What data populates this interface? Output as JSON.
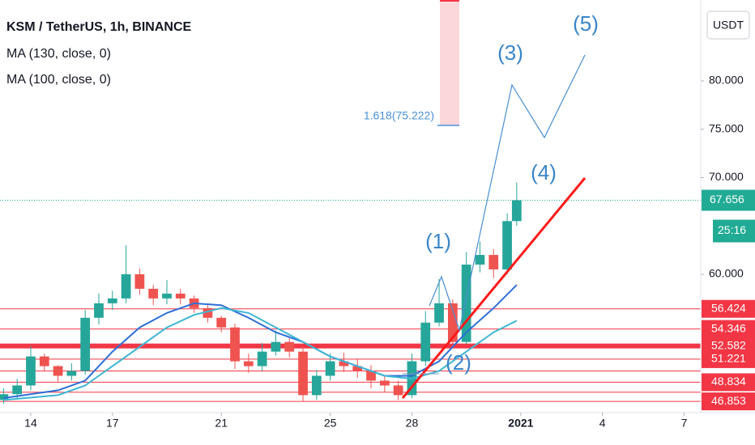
{
  "chart_data": {
    "type": "candlestick",
    "title": "KSM / TetherUS, 1h, BINANCE",
    "currency": "USDT",
    "x": [
      13,
      13.5,
      14,
      14.5,
      15,
      15.5,
      16,
      16.5,
      17,
      17.5,
      18,
      18.5,
      19,
      19.5,
      20,
      20.5,
      21,
      21.5,
      22,
      22.5,
      23,
      23.5,
      24,
      24.5,
      25,
      25.5,
      26,
      26.5,
      27,
      27.5,
      28,
      28.5,
      29,
      29.5,
      30,
      30.5,
      31,
      31.5,
      31.85
    ],
    "open": [
      47.0,
      47.6,
      48.5,
      51.5,
      50.5,
      49.5,
      50.0,
      55.5,
      57.0,
      57.5,
      60.0,
      58.5,
      57.5,
      58.0,
      57.5,
      56.5,
      55.5,
      54.5,
      51.0,
      50.5,
      52.0,
      53.0,
      52.0,
      47.5,
      49.5,
      51.0,
      50.5,
      50.0,
      49.0,
      48.5,
      47.5,
      51.0,
      55.0,
      57.0,
      53.0,
      61.0,
      62.0,
      60.5,
      65.5
    ],
    "high": [
      48.2,
      49.2,
      52.6,
      51.8,
      50.6,
      50.8,
      56.3,
      58.0,
      58.3,
      63.0,
      60.6,
      58.9,
      59.4,
      58.5,
      57.8,
      56.8,
      55.7,
      54.9,
      51.8,
      52.9,
      54.2,
      53.4,
      52.5,
      50.1,
      51.8,
      51.9,
      51.2,
      50.6,
      49.5,
      49.0,
      51.8,
      56.2,
      59.5,
      57.4,
      62.3,
      63.4,
      62.6,
      66.3,
      69.5
    ],
    "low": [
      46.6,
      47.1,
      48.0,
      50.0,
      48.9,
      49.0,
      49.6,
      54.8,
      56.3,
      57.0,
      57.9,
      56.8,
      56.9,
      56.9,
      56.0,
      55.0,
      54.0,
      50.2,
      49.8,
      50.0,
      51.6,
      51.4,
      46.9,
      47.0,
      49.0,
      49.9,
      49.3,
      48.2,
      47.8,
      47.0,
      47.2,
      50.5,
      54.6,
      52.6,
      52.8,
      60.2,
      59.6,
      60.0,
      65.0
    ],
    "close": [
      47.6,
      48.5,
      51.5,
      50.5,
      49.5,
      50.0,
      55.5,
      57.0,
      57.5,
      60.0,
      58.5,
      57.5,
      58.0,
      57.5,
      56.5,
      55.5,
      54.5,
      51.0,
      50.5,
      52.0,
      53.0,
      52.0,
      47.5,
      49.5,
      51.0,
      50.5,
      50.0,
      49.0,
      48.5,
      47.5,
      51.0,
      55.0,
      57.0,
      53.0,
      61.0,
      62.0,
      60.5,
      65.5,
      67.656
    ],
    "up_color": "#26a69a",
    "down_color": "#ef5350",
    "series": [
      {
        "name": "MA (130, close, 0)",
        "color": "#2e6fd6",
        "x": [
          13,
          15,
          16,
          17,
          18,
          19,
          20,
          21,
          22,
          23,
          24,
          25,
          26,
          27,
          28,
          29,
          30,
          31,
          31.85
        ],
        "values": [
          47.2,
          48.0,
          49.0,
          52.0,
          54.5,
          56.0,
          57.0,
          56.8,
          55.5,
          54.0,
          53.0,
          51.5,
          50.5,
          49.5,
          49.5,
          51.0,
          54.0,
          56.5,
          58.9
        ]
      },
      {
        "name": "MA (100, close, 0)",
        "color": "#3fb6d3",
        "x": [
          13,
          15,
          16,
          17,
          18,
          19,
          20,
          21,
          22,
          23,
          24,
          25,
          26,
          27,
          28,
          29,
          30,
          31,
          31.85
        ],
        "values": [
          47.0,
          47.5,
          48.5,
          50.5,
          52.5,
          54.5,
          55.8,
          56.5,
          56.0,
          54.5,
          53.0,
          51.5,
          50.5,
          49.5,
          49.2,
          50.0,
          52.0,
          54.0,
          55.2
        ]
      }
    ],
    "levels": [
      56.424,
      54.346,
      52.582,
      51.221,
      48.834,
      46.853
    ],
    "unlabeled_levels": [
      50.0,
      47.8
    ],
    "thick_level": 52.582,
    "level_color": "#f23645",
    "last_price": 67.656,
    "last_price_color": "#22ab94",
    "countdown": "25:16",
    "fib_label": "1.618(75.222)",
    "wave_labels": [
      "(1)",
      "(2)",
      "(3)",
      "(4)",
      "(5)"
    ],
    "xlim": [
      12.87,
      38.61
    ],
    "xticks": [
      14,
      17,
      21,
      25,
      28,
      {
        "value": 32,
        "label": "2021"
      },
      {
        "value": 35,
        "label": "4"
      },
      {
        "value": 38,
        "label": "7"
      }
    ],
    "ylim": [
      45.69,
      88.37
    ],
    "yticks": [
      {
        "value": 60,
        "label": "60.000"
      },
      {
        "value": 70,
        "label": "70.000"
      },
      {
        "value": 75,
        "label": "75.000"
      },
      {
        "value": 80,
        "label": "80.000"
      }
    ]
  }
}
